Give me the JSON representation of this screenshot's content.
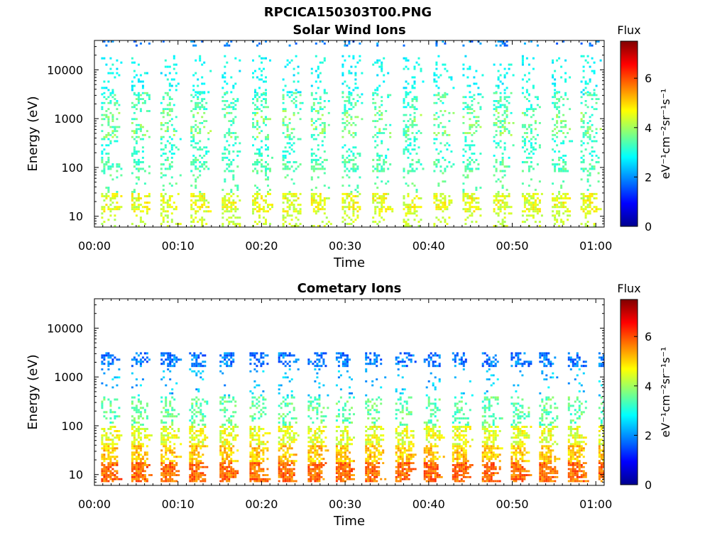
{
  "figure": {
    "title": "RPCICA150303T00.PNG"
  },
  "colormap": [
    "#00008f",
    "#0000ff",
    "#0080ff",
    "#00ffff",
    "#80ff80",
    "#ffff00",
    "#ff8000",
    "#ff0000",
    "#800000"
  ],
  "chart_data": [
    {
      "type": "heatmap",
      "title": "Solar Wind Ions",
      "xlabel": "Time",
      "ylabel": "Energy (eV)",
      "x_ticks": [
        "00:00",
        "00:10",
        "00:20",
        "00:30",
        "00:40",
        "00:50",
        "01:00"
      ],
      "x_range_minutes": [
        0,
        61
      ],
      "y_ticks": [
        "10",
        "100",
        "1000",
        "10000"
      ],
      "y_scale": "log",
      "y_range_eV": [
        6,
        40000
      ],
      "colorbar": {
        "label": "Flux",
        "units": "eV⁻¹cm⁻²sr⁻¹s⁻¹",
        "range": [
          0,
          7.5
        ],
        "ticks": [
          "0",
          "2",
          "4",
          "6"
        ]
      },
      "bands": [
        {
          "energy_min": 30000,
          "energy_max": 40000,
          "flux_min": 1.5,
          "flux_max": 2.3,
          "density": 0.18
        },
        {
          "energy_min": 3000,
          "energy_max": 20000,
          "flux_min": 2.5,
          "flux_max": 3.2,
          "density": 0.15
        },
        {
          "energy_min": 1500,
          "energy_max": 3500,
          "flux_min": 2.8,
          "flux_max": 3.8,
          "density": 0.3
        },
        {
          "energy_min": 400,
          "energy_max": 1500,
          "flux_min": 3.0,
          "flux_max": 4.2,
          "density": 0.3
        },
        {
          "energy_min": 150,
          "energy_max": 400,
          "flux_min": 2.8,
          "flux_max": 3.5,
          "density": 0.25
        },
        {
          "energy_min": 80,
          "energy_max": 150,
          "flux_min": 3.0,
          "flux_max": 3.8,
          "density": 0.4
        },
        {
          "energy_min": 30,
          "energy_max": 80,
          "flux_min": 3.2,
          "flux_max": 3.8,
          "density": 0.12
        },
        {
          "energy_min": 12,
          "energy_max": 30,
          "flux_min": 4.0,
          "flux_max": 5.0,
          "density": 0.6
        },
        {
          "energy_min": 6,
          "energy_max": 12,
          "flux_min": 4.0,
          "flux_max": 4.6,
          "density": 0.3
        }
      ]
    },
    {
      "type": "heatmap",
      "title": "Cometary Ions",
      "xlabel": "Time",
      "ylabel": "Energy (eV)",
      "x_ticks": [
        "00:00",
        "00:10",
        "00:20",
        "00:30",
        "00:40",
        "00:50",
        "01:00"
      ],
      "x_range_minutes": [
        0,
        61
      ],
      "y_ticks": [
        "10",
        "100",
        "1000",
        "10000"
      ],
      "y_scale": "log",
      "y_range_eV": [
        6,
        40000
      ],
      "colorbar": {
        "label": "Flux",
        "units": "eV⁻¹cm⁻²sr⁻¹s⁻¹",
        "range": [
          0,
          7.5
        ],
        "ticks": [
          "0",
          "2",
          "4",
          "6"
        ]
      },
      "bands": [
        {
          "energy_min": 1600,
          "energy_max": 3200,
          "flux_min": 1.3,
          "flux_max": 2.3,
          "density": 0.5
        },
        {
          "energy_min": 400,
          "energy_max": 1500,
          "flux_min": 1.8,
          "flux_max": 2.8,
          "density": 0.08
        },
        {
          "energy_min": 100,
          "energy_max": 400,
          "flux_min": 3.0,
          "flux_max": 4.0,
          "density": 0.35
        },
        {
          "energy_min": 40,
          "energy_max": 100,
          "flux_min": 4.0,
          "flux_max": 5.0,
          "density": 0.6
        },
        {
          "energy_min": 18,
          "energy_max": 40,
          "flux_min": 4.6,
          "flux_max": 5.6,
          "density": 0.7
        },
        {
          "energy_min": 7,
          "energy_max": 18,
          "flux_min": 5.3,
          "flux_max": 6.3,
          "density": 0.85
        }
      ]
    }
  ]
}
